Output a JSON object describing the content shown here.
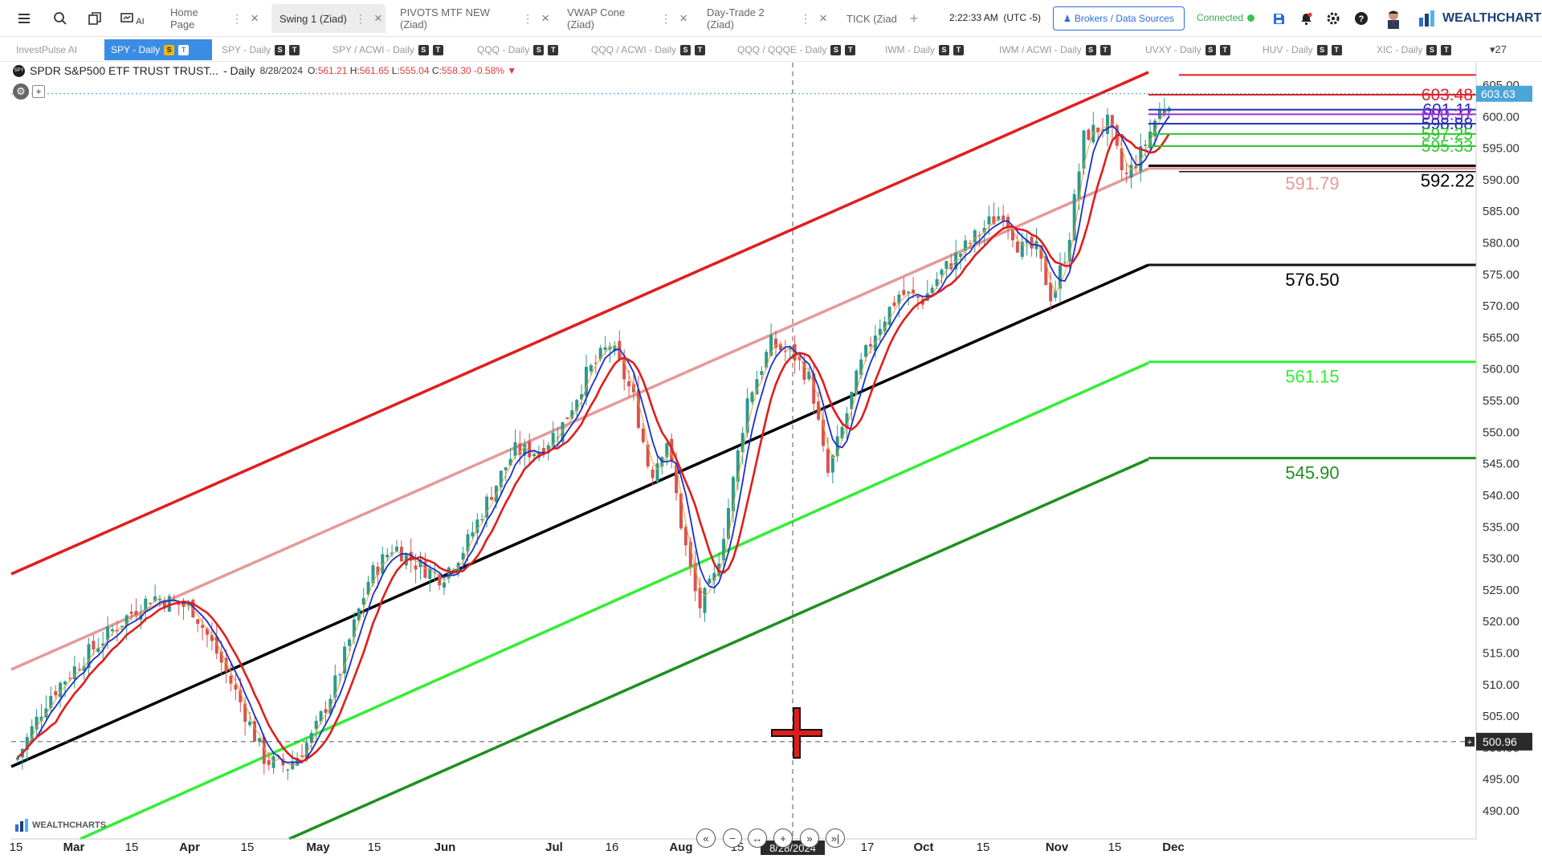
{
  "topbar": {
    "tabs": [
      {
        "label": "Home Page"
      },
      {
        "label": "Swing 1 (Ziad)"
      },
      {
        "label": "PIVOTS MTF NEW (Ziad)"
      },
      {
        "label": "VWAP Cone (Ziad)"
      },
      {
        "label": "Day-Trade 2 (Ziad)"
      },
      {
        "label": "TICK (Ziad"
      }
    ],
    "ai_label": "AI",
    "clock": "2:22:33 AM",
    "timezone": "(UTC -5)",
    "brokers_label": "Brokers / Data Sources",
    "status": "Connected",
    "brand": "WEALTHCHARTS"
  },
  "workspace": {
    "tabs": [
      {
        "label": "InvestPulse AI",
        "badges": []
      },
      {
        "label": "SPY - Daily",
        "badges": [
          "S",
          "T"
        ]
      },
      {
        "label": "SPY - Daily",
        "badges": [
          "S",
          "T"
        ]
      },
      {
        "label": "SPY / ACWI - Daily",
        "badges": [
          "S",
          "T"
        ]
      },
      {
        "label": "QQQ - Daily",
        "badges": [
          "S",
          "T"
        ]
      },
      {
        "label": "QQQ / ACWI - Daily",
        "badges": [
          "S",
          "T"
        ]
      },
      {
        "label": "QQQ / QQQE - Daily",
        "badges": [
          "S",
          "T"
        ]
      },
      {
        "label": "IWM - Daily",
        "badges": [
          "S",
          "T"
        ]
      },
      {
        "label": "IWM / ACWI - Daily",
        "badges": [
          "S",
          "T"
        ]
      },
      {
        "label": "UVXY - Daily",
        "badges": [
          "S",
          "T"
        ]
      },
      {
        "label": "HUV - Daily",
        "badges": [
          "S",
          "T"
        ]
      },
      {
        "label": "XIC - Daily",
        "badges": [
          "S",
          "T"
        ]
      }
    ],
    "more_count": "27"
  },
  "chart": {
    "symbol_icon": "SPY",
    "title": "SPDR S&P500 ETF TRUST TRUST...",
    "interval": "- Daily",
    "date": "8/28/2024",
    "o_label": "O:",
    "o": "561.21",
    "h_label": "H:",
    "h": "561.65",
    "l_label": "L:",
    "l": "555.04",
    "c_label": "C:",
    "c": "558.30",
    "change": "-0.58%",
    "last_price": "603.63",
    "cursor_price": "500.96",
    "cursor_date": "8/28/2024",
    "watermark": "WEALTHCHARTS"
  },
  "chart_data": {
    "type": "candlestick",
    "y_ticks": [
      490,
      495,
      500,
      505,
      510,
      515,
      520,
      525,
      530,
      535,
      540,
      545,
      550,
      555,
      560,
      565,
      570,
      575,
      580,
      585,
      590,
      595,
      600,
      605
    ],
    "y_tick_labels": [
      "490.00",
      "495.00",
      "500.00",
      "505.00",
      "510.00",
      "515.00",
      "520.00",
      "525.00",
      "530.00",
      "535.00",
      "540.00",
      "545.00",
      "550.00",
      "555.00",
      "560.00",
      "565.00",
      "570.00",
      "575.00",
      "580.00",
      "585.00",
      "590.00",
      "595.00",
      "600.00",
      "605.00"
    ],
    "ylim": [
      485,
      611
    ],
    "x_ticks": [
      "15",
      "Mar",
      "15",
      "Apr",
      "15",
      "May",
      "15",
      "Jun",
      "Jul",
      "16",
      "Aug",
      "15",
      "17",
      "Oct",
      "15",
      "Nov",
      "15",
      "Dec"
    ],
    "levels": [
      {
        "label": "603.48",
        "value": 603.48,
        "color": "#e02020"
      },
      {
        "label": "601.11",
        "value": 601.11,
        "color": "#1f2fb5"
      },
      {
        "label": "600.37",
        "value": 600.37,
        "color": "#9b2fd0"
      },
      {
        "label": "598.88",
        "value": 598.88,
        "color": "#1f2fb5"
      },
      {
        "label": "597.25",
        "value": 597.25,
        "color": "#2ec72e"
      },
      {
        "label": "595.33",
        "value": 595.33,
        "color": "#2ec72e"
      },
      {
        "label": "592.22",
        "value": 592.22,
        "color": "#111111"
      },
      {
        "label": "591.79",
        "value": 591.79,
        "color": "#e49a9a"
      },
      {
        "label": "576.50",
        "value": 576.5,
        "color": "#111111"
      },
      {
        "label": "561.15",
        "value": 561.15,
        "color": "#33ee33"
      },
      {
        "label": "545.90",
        "value": 545.9,
        "color": "#1f8f1f"
      }
    ]
  }
}
